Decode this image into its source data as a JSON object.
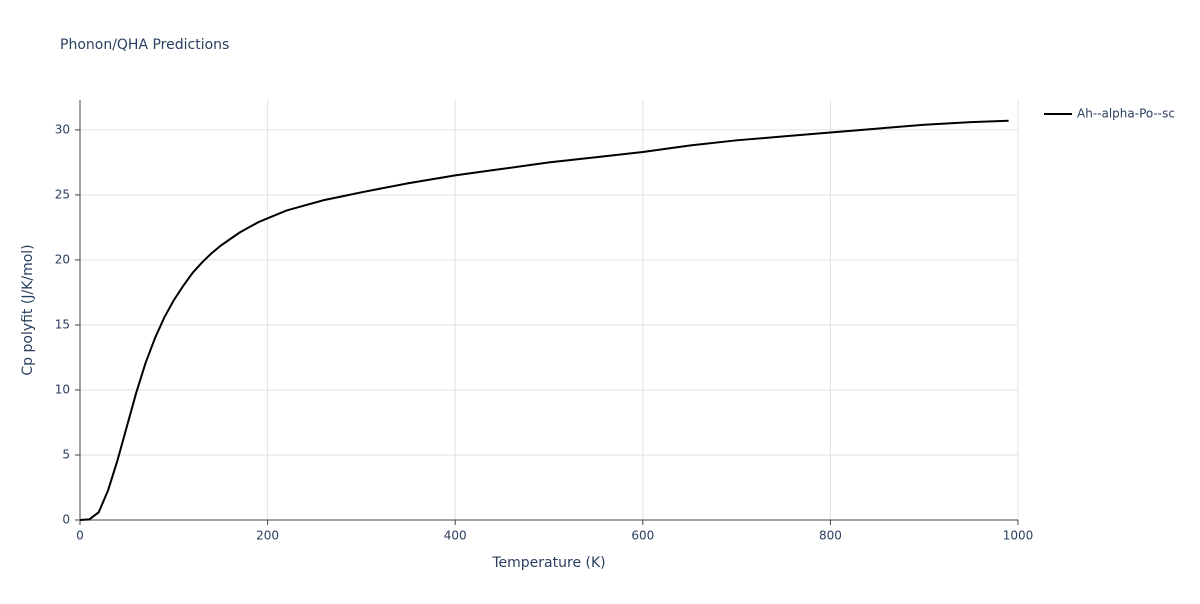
{
  "chart_data": {
    "type": "line",
    "title": "Phonon/QHA Predictions",
    "x_label": "Temperature (K)",
    "y_label": "Cp polyfit (J/K/mol)",
    "x": [
      0,
      10,
      20,
      30,
      40,
      50,
      60,
      70,
      80,
      90,
      100,
      110,
      120,
      130,
      140,
      150,
      160,
      170,
      180,
      190,
      200,
      220,
      240,
      260,
      280,
      300,
      350,
      400,
      450,
      500,
      550,
      600,
      650,
      700,
      750,
      800,
      850,
      900,
      950,
      990
    ],
    "series": [
      {
        "name": "Ah--alpha-Po--sc",
        "color": "#000000",
        "values": [
          0,
          0.05,
          0.6,
          2.3,
          4.6,
          7.2,
          9.8,
          12.1,
          14.0,
          15.6,
          16.9,
          18.0,
          19.0,
          19.8,
          20.5,
          21.1,
          21.6,
          22.1,
          22.5,
          22.9,
          23.2,
          23.8,
          24.2,
          24.6,
          24.9,
          25.2,
          25.9,
          26.5,
          27.0,
          27.5,
          27.9,
          28.3,
          28.8,
          29.2,
          29.5,
          29.8,
          30.1,
          30.4,
          30.6,
          30.7
        ]
      }
    ],
    "xlim": [
      0,
      1000
    ],
    "ylim": [
      0,
      32.3
    ],
    "xticks": [
      0,
      200,
      400,
      600,
      800,
      1000
    ],
    "yticks": [
      0,
      5,
      10,
      15,
      20,
      25,
      30
    ],
    "grid": true,
    "legend": "right"
  }
}
